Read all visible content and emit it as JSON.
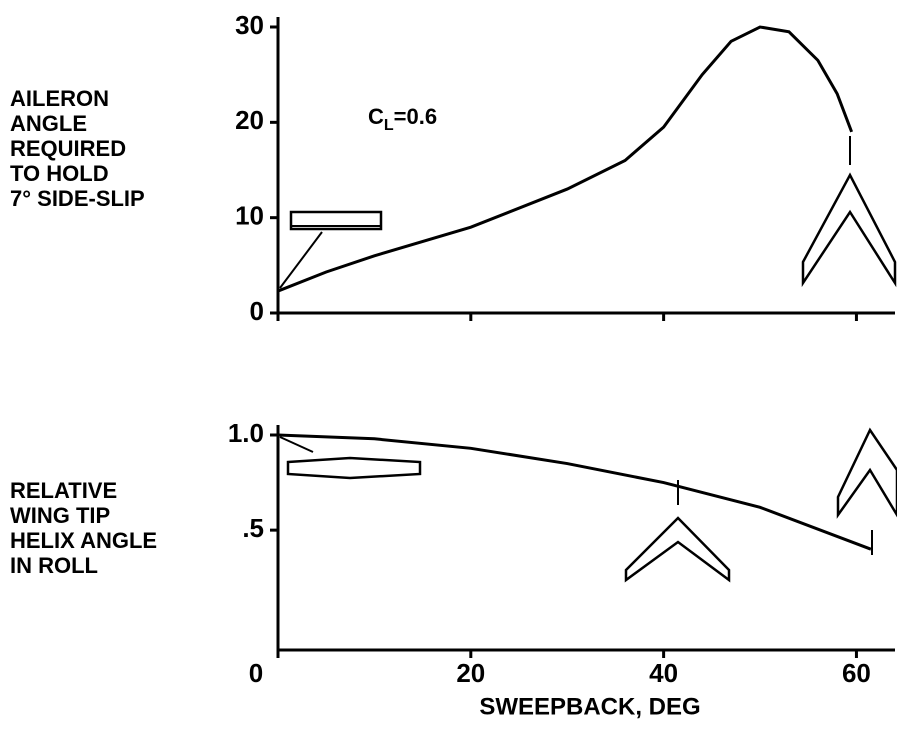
{
  "chart_data": [
    {
      "type": "line",
      "ylabel": [
        "AILERON",
        "ANGLE",
        "REQUIRED",
        "TO HOLD",
        "7° SIDE-SLIP"
      ],
      "annotation": [
        "C",
        "L",
        "=0.6"
      ],
      "x": [
        0,
        5,
        10,
        20,
        30,
        36,
        40,
        44,
        47,
        50,
        53,
        56,
        58,
        59.5
      ],
      "values": [
        2.3,
        4.3,
        6,
        9,
        13,
        16,
        19.5,
        25,
        28.5,
        30,
        29.5,
        26.5,
        23,
        19
      ],
      "color": "#000000",
      "xlim": [
        0,
        64
      ],
      "ylim": [
        0,
        30
      ],
      "yticks": [
        0,
        10,
        20,
        30
      ]
    },
    {
      "type": "line",
      "ylabel": [
        "RELATIVE",
        "WING TIP",
        "HELIX ANGLE",
        "IN ROLL"
      ],
      "xlabel": "SWEEPBACK, DEG",
      "x": [
        0,
        10,
        20,
        30,
        40,
        50,
        61.5
      ],
      "values": [
        1.0,
        0.98,
        0.93,
        0.85,
        0.75,
        0.62,
        0.4
      ],
      "color": "#000000",
      "xlim": [
        0,
        64
      ],
      "xticks": [
        0,
        20,
        40,
        60
      ],
      "ylim": [
        -0.13,
        1.0
      ],
      "yticks": [
        {
          "value": 1.0,
          "label": "1.0"
        },
        {
          "value": 0.5,
          "label": ".5"
        }
      ]
    }
  ]
}
